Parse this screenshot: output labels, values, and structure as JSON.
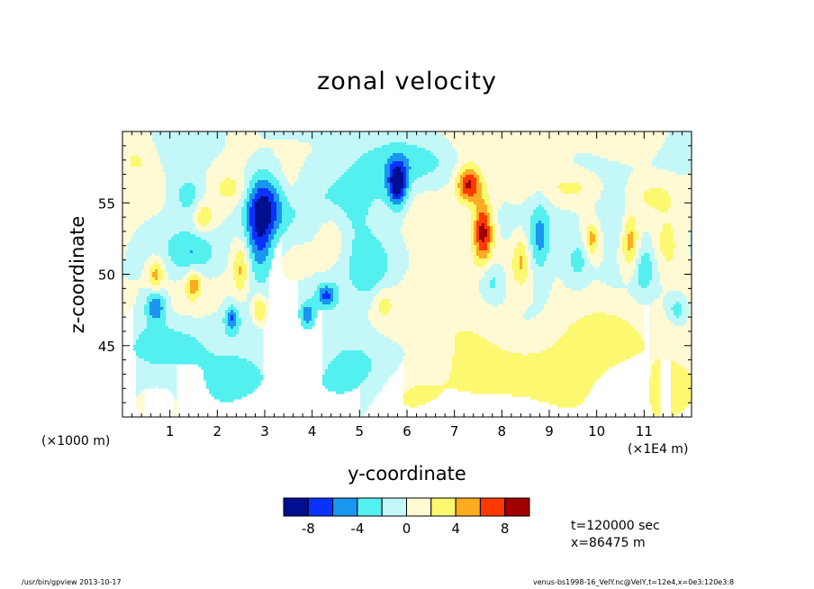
{
  "chart_data": {
    "type": "heatmap",
    "title": "zonal velocity",
    "xlabel": "y-coordinate",
    "ylabel": "z-coordinate",
    "x_unit_note": "(×1000 m)",
    "x_scale_note": "(×1E4 m)",
    "xlim": [
      0,
      12
    ],
    "ylim": [
      40,
      60
    ],
    "xticks": [
      "1",
      "2",
      "3",
      "4",
      "5",
      "6",
      "7",
      "8",
      "9",
      "10",
      "11"
    ],
    "yticks": [
      "45",
      "50",
      "55"
    ],
    "colorbar": {
      "levels": [
        -10,
        -8,
        -6,
        -4,
        -2,
        0,
        2,
        4,
        6,
        8,
        10
      ],
      "labels": [
        "-8",
        "-4",
        "0",
        "4",
        "8"
      ],
      "colors": [
        "#000e90",
        "#0a32ff",
        "#1a96f0",
        "#54f0f0",
        "#c4f8f8",
        "#fffad4",
        "#fcf870",
        "#fcac20",
        "#fc3a00",
        "#a00000"
      ]
    },
    "features": [
      {
        "y": 5.8,
        "z": 56.3,
        "amp": -9,
        "sy": 0.14,
        "sz": 1.1
      },
      {
        "y": 2.9,
        "z": 53.0,
        "amp": -6.5,
        "sy": 0.2,
        "sz": 2.3
      },
      {
        "y": 3.1,
        "z": 54.8,
        "amp": -4.5,
        "sy": 0.35,
        "sz": 1.6
      },
      {
        "y": 0.7,
        "z": 47.8,
        "amp": -6,
        "sy": 0.15,
        "sz": 0.8
      },
      {
        "y": 2.3,
        "z": 46.9,
        "amp": -5.5,
        "sy": 0.1,
        "sz": 0.6
      },
      {
        "y": 4.3,
        "z": 48.5,
        "amp": -6,
        "sy": 0.15,
        "sz": 0.6
      },
      {
        "y": 3.9,
        "z": 47.2,
        "amp": -5,
        "sy": 0.1,
        "sz": 0.6
      },
      {
        "y": 1.5,
        "z": 51.5,
        "amp": -3.5,
        "sy": 0.35,
        "sz": 1.2
      },
      {
        "y": 1.4,
        "z": 55.5,
        "amp": -3.5,
        "sy": 0.25,
        "sz": 1.0
      },
      {
        "y": 8.8,
        "z": 52.5,
        "amp": -4.5,
        "sy": 0.15,
        "sz": 1.8
      },
      {
        "y": 10.5,
        "z": 53.5,
        "amp": -3.5,
        "sy": 0.3,
        "sz": 1.5
      },
      {
        "y": 7.8,
        "z": 49.5,
        "amp": -3.5,
        "sy": 0.2,
        "sz": 1.0
      },
      {
        "y": 11.7,
        "z": 47.5,
        "amp": -3.5,
        "sy": 0.15,
        "sz": 0.7
      },
      {
        "y": 9.6,
        "z": 51.0,
        "amp": -3,
        "sy": 0.15,
        "sz": 1.0
      },
      {
        "y": 11.0,
        "z": 50.5,
        "amp": -3,
        "sy": 0.15,
        "sz": 1.3
      },
      {
        "y": 7.6,
        "z": 53.0,
        "amp": 9.5,
        "sy": 0.15,
        "sz": 1.5
      },
      {
        "y": 7.3,
        "z": 56.3,
        "amp": 8.5,
        "sy": 0.18,
        "sz": 0.9
      },
      {
        "y": 2.9,
        "z": 47.5,
        "amp": 5.5,
        "sy": 0.12,
        "sz": 0.8
      },
      {
        "y": 0.7,
        "z": 50.0,
        "amp": 5,
        "sy": 0.12,
        "sz": 0.8
      },
      {
        "y": 1.5,
        "z": 49.3,
        "amp": 5,
        "sy": 0.12,
        "sz": 0.7
      },
      {
        "y": 2.5,
        "z": 50.3,
        "amp": 4.5,
        "sy": 0.12,
        "sz": 1.3
      },
      {
        "y": 10.7,
        "z": 52.5,
        "amp": 6,
        "sy": 0.14,
        "sz": 1.5
      },
      {
        "y": 1.7,
        "z": 54.0,
        "amp": 4,
        "sy": 0.15,
        "sz": 0.8
      },
      {
        "y": 9.9,
        "z": 52.5,
        "amp": 4.5,
        "sy": 0.1,
        "sz": 0.8
      },
      {
        "y": 8.4,
        "z": 51.0,
        "amp": 3.5,
        "sy": 0.12,
        "sz": 1.2
      },
      {
        "y": 4.4,
        "z": 52.5,
        "amp": 3,
        "sy": 0.2,
        "sz": 1.2
      },
      {
        "y": 9.5,
        "z": 56.0,
        "amp": 3,
        "sy": 0.4,
        "sz": 0.8
      },
      {
        "y": 11.2,
        "z": 55.5,
        "amp": 3,
        "sy": 0.4,
        "sz": 1.0
      },
      {
        "y": 11.5,
        "z": 52.0,
        "amp": 3,
        "sy": 0.2,
        "sz": 1.5
      },
      {
        "y": 2.3,
        "z": 56.0,
        "amp": 2.5,
        "sy": 0.25,
        "sz": 0.8
      },
      {
        "y": 3.5,
        "z": 56.0,
        "amp": 2.5,
        "sy": 0.2,
        "sz": 1.3
      },
      {
        "y": 5.5,
        "z": 48.0,
        "amp": 2.5,
        "sy": 0.15,
        "sz": 0.8
      },
      {
        "y": 0.9,
        "z": 45.0,
        "amp": -2.5,
        "sy": 0.6,
        "sz": 1.2
      },
      {
        "y": 3.3,
        "z": 44.0,
        "amp": -2.5,
        "sy": 0.8,
        "sz": 2.0
      },
      {
        "y": 5.0,
        "z": 43.0,
        "amp": -2.2,
        "sy": 0.5,
        "sz": 2.0
      },
      {
        "y": 1.8,
        "z": 42.0,
        "amp": -2.2,
        "sy": 0.6,
        "sz": 1.5
      },
      {
        "y": 4.8,
        "z": 55.0,
        "amp": -2.5,
        "sy": 0.8,
        "sz": 3.0
      },
      {
        "y": 6.3,
        "z": 58.0,
        "amp": -2.5,
        "sy": 0.6,
        "sz": 1.2
      },
      {
        "y": 5.2,
        "z": 50.0,
        "amp": -2.3,
        "sy": 0.3,
        "sz": 1.5
      },
      {
        "y": 7.2,
        "z": 45.5,
        "amp": 2.2,
        "sy": 0.6,
        "sz": 2.0
      },
      {
        "y": 10.0,
        "z": 45.0,
        "amp": 2.2,
        "sy": 1.0,
        "sz": 2.5
      },
      {
        "y": 6.2,
        "z": 42.0,
        "amp": 2.2,
        "sy": 0.6,
        "sz": 1.5
      },
      {
        "y": 8.8,
        "z": 42.0,
        "amp": 2.2,
        "sy": 1.0,
        "sz": 2.0
      },
      {
        "y": 11.5,
        "z": 42.0,
        "amp": 2.2,
        "sy": 0.6,
        "sz": 2.0
      },
      {
        "y": 0.3,
        "z": 58.0,
        "amp": 2.2,
        "sy": 0.3,
        "sz": 1.0
      },
      {
        "y": 6.6,
        "z": 51.0,
        "amp": 2.2,
        "sy": 0.4,
        "sz": 2.5
      },
      {
        "y": 7.8,
        "z": 59.0,
        "amp": 2.2,
        "sy": 0.7,
        "sz": 0.8
      }
    ]
  },
  "annotations": {
    "time": "t=120000  sec",
    "xpos": "x=86475  m"
  },
  "footer": {
    "left": "/usr/bin/gpview   2013-10-17",
    "right": "venus-bs1998-16_VelY.nc@VelY,t=12e4,x=0e3:120e3:8"
  }
}
